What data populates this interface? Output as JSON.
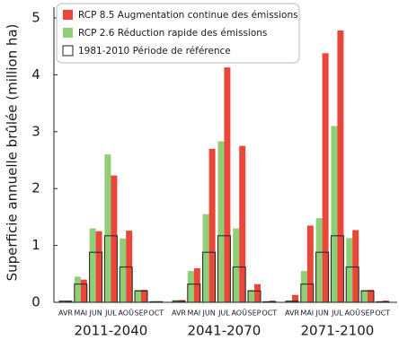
{
  "chart_data": {
    "type": "bar",
    "ylabel": "Superficie annuelle brûlée (million ha)",
    "ylim": [
      0,
      5
    ],
    "yticks": [
      0,
      1,
      2,
      3,
      4,
      5
    ],
    "categories": [
      "AVR",
      "MAI",
      "JUN",
      "JUL",
      "AOÛ",
      "SEP",
      "OCT"
    ],
    "groups": [
      "2011-2040",
      "2041-2070",
      "2071-2100"
    ],
    "series": [
      {
        "name": "RCP 8.5 Augmentation continue des émissions",
        "color": "#e8473a",
        "values": [
          [
            0.03,
            0.4,
            1.25,
            2.23,
            1.26,
            0.22,
            0.02
          ],
          [
            0.04,
            0.6,
            2.7,
            4.13,
            2.75,
            0.32,
            0.03
          ],
          [
            0.13,
            1.35,
            4.38,
            4.78,
            1.27,
            0.22,
            0.03
          ]
        ]
      },
      {
        "name": "RCP 2.6 Réduction rapide des émissions",
        "color": "#8fce76",
        "values": [
          [
            0.03,
            0.45,
            1.3,
            2.6,
            1.12,
            0.22,
            0.02
          ],
          [
            0.04,
            0.55,
            1.55,
            2.83,
            1.3,
            0.22,
            0.02
          ],
          [
            0.03,
            0.55,
            1.48,
            3.1,
            1.13,
            0.22,
            0.02
          ]
        ]
      },
      {
        "name": "1981-2010 Période de référence",
        "color": "#222222",
        "values": [
          0.02,
          0.32,
          0.88,
          1.17,
          0.62,
          0.2,
          0.01
        ]
      }
    ]
  }
}
